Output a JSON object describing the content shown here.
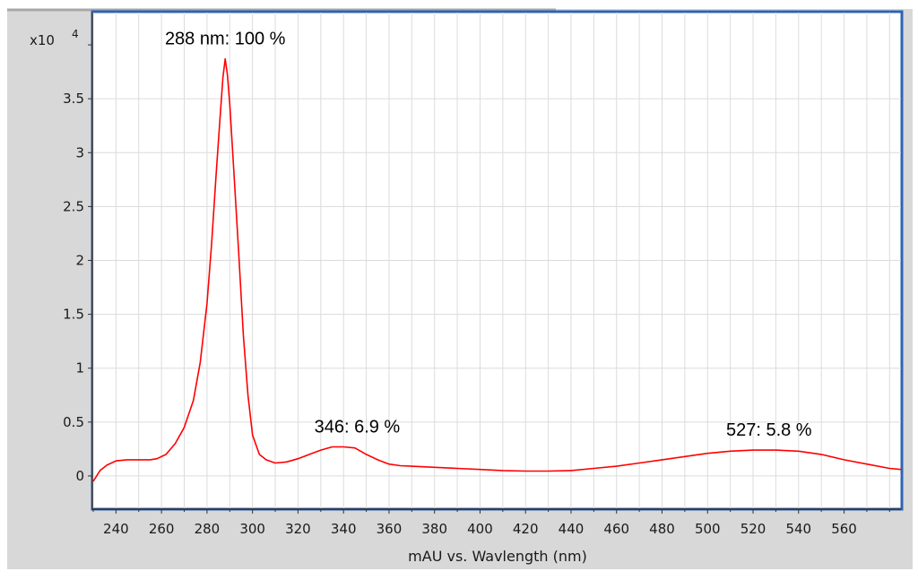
{
  "chart_data": {
    "type": "line",
    "xlabel": "mAU vs. Wavlength (nm)",
    "y_multiplier_label": "x10",
    "y_multiplier_exponent": "4",
    "xlim": [
      230,
      585
    ],
    "ylim": [
      -0.3,
      4.3
    ],
    "x_ticks": [
      240,
      260,
      280,
      300,
      320,
      340,
      360,
      380,
      400,
      420,
      440,
      460,
      480,
      500,
      520,
      540,
      560
    ],
    "y_ticks": [
      {
        "value": 0,
        "label": "0"
      },
      {
        "value": 0.5,
        "label": "0.5"
      },
      {
        "value": 1,
        "label": "1"
      },
      {
        "value": 1.5,
        "label": "1.5"
      },
      {
        "value": 2,
        "label": "2"
      },
      {
        "value": 2.5,
        "label": "2.5"
      },
      {
        "value": 3,
        "label": "3"
      },
      {
        "value": 3.5,
        "label": "3.5"
      }
    ],
    "grid": true,
    "series": [
      {
        "color": "#ff0000",
        "x": [
          230,
          233,
          236,
          240,
          245,
          250,
          255,
          258,
          262,
          266,
          270,
          274,
          277,
          280,
          282,
          284,
          286,
          287,
          288,
          289,
          290,
          292,
          294,
          296,
          298,
          300,
          303,
          306,
          310,
          315,
          320,
          325,
          330,
          335,
          340,
          345,
          350,
          355,
          360,
          365,
          370,
          380,
          390,
          400,
          410,
          420,
          430,
          440,
          450,
          460,
          470,
          480,
          490,
          500,
          510,
          520,
          530,
          540,
          550,
          560,
          570,
          580,
          585
        ],
        "y": [
          -0.05,
          0.05,
          0.1,
          0.14,
          0.15,
          0.15,
          0.15,
          0.16,
          0.2,
          0.3,
          0.45,
          0.7,
          1.05,
          1.6,
          2.15,
          2.8,
          3.4,
          3.7,
          3.87,
          3.72,
          3.45,
          2.75,
          2.05,
          1.3,
          0.75,
          0.38,
          0.2,
          0.15,
          0.12,
          0.13,
          0.16,
          0.2,
          0.24,
          0.27,
          0.27,
          0.26,
          0.2,
          0.15,
          0.11,
          0.095,
          0.09,
          0.08,
          0.07,
          0.06,
          0.05,
          0.045,
          0.045,
          0.05,
          0.07,
          0.09,
          0.12,
          0.15,
          0.18,
          0.21,
          0.23,
          0.24,
          0.24,
          0.23,
          0.2,
          0.15,
          0.11,
          0.07,
          0.06
        ]
      }
    ],
    "annotations": [
      {
        "text": "288 nm: 100 %",
        "x": 288,
        "y": 3.87
      },
      {
        "text": "346: 6.9 %",
        "x": 346,
        "y": 0.27
      },
      {
        "text": "527: 5.8 %",
        "x": 527,
        "y": 0.24
      }
    ]
  }
}
